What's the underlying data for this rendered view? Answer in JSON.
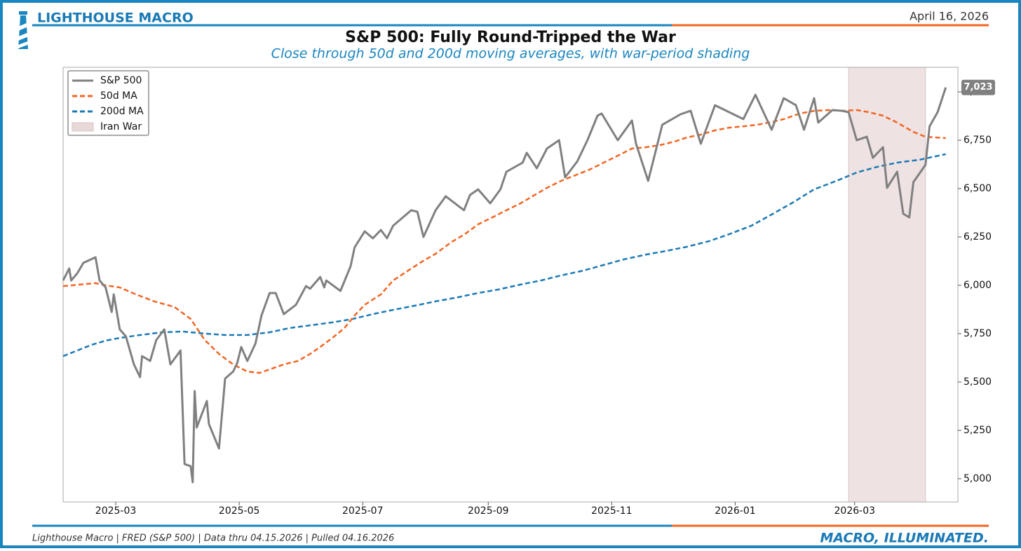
{
  "header": {
    "brand": "LIGHTHOUSE MACRO",
    "date": "April 16, 2026"
  },
  "footer": {
    "source": "Lighthouse Macro | FRED (S&P 500) | Data thru 04.15.2026 | Pulled 04.16.2026",
    "tagline": "MACRO, ILLUMINATED."
  },
  "chart_data": {
    "type": "line",
    "title": "S&P 500: Fully Round-Tripped the War",
    "subtitle": "Close through 50d and 200d moving averages, with war-period shading",
    "xlim": [
      "2025-02-03",
      "2026-04-21"
    ],
    "xticks": [
      {
        "value": "2025-03-01",
        "label": "2025-03"
      },
      {
        "value": "2025-05-01",
        "label": "2025-05"
      },
      {
        "value": "2025-07-01",
        "label": "2025-07"
      },
      {
        "value": "2025-09-01",
        "label": "2025-09"
      },
      {
        "value": "2025-11-01",
        "label": "2025-11"
      },
      {
        "value": "2026-01-01",
        "label": "2026-01"
      },
      {
        "value": "2026-03-01",
        "label": "2026-03"
      }
    ],
    "ylim": [
      4880,
      7127
    ],
    "yticks": [
      {
        "value": 5000,
        "label": "5,000"
      },
      {
        "value": 5250,
        "label": "5,250"
      },
      {
        "value": 5500,
        "label": "5,500"
      },
      {
        "value": 5750,
        "label": "5,750"
      },
      {
        "value": 6000,
        "label": "6,000"
      },
      {
        "value": 6250,
        "label": "6,250"
      },
      {
        "value": 6500,
        "label": "6,500"
      },
      {
        "value": 6750,
        "label": "6,750"
      },
      {
        "value": 7000,
        "label": "7,000"
      }
    ],
    "y_axis_side": "right",
    "legend": "upper left",
    "end_label": "7,023",
    "shaded_regions": [
      {
        "name": "Iran War",
        "start": "2026-02-26",
        "end": "2026-04-05",
        "color": "#e8d8d8"
      }
    ],
    "series": [
      {
        "name": "S&P 500",
        "color": "#808080",
        "dash": false,
        "x": [
          "2025-02-03",
          "2025-02-06",
          "2025-02-07",
          "2025-02-10",
          "2025-02-13",
          "2025-02-19",
          "2025-02-21",
          "2025-02-24",
          "2025-02-27",
          "2025-02-28",
          "2025-03-03",
          "2025-03-06",
          "2025-03-10",
          "2025-03-13",
          "2025-03-14",
          "2025-03-18",
          "2025-03-21",
          "2025-03-25",
          "2025-03-28",
          "2025-04-02",
          "2025-04-04",
          "2025-04-07",
          "2025-04-08",
          "2025-04-09",
          "2025-04-10",
          "2025-04-15",
          "2025-04-16",
          "2025-04-21",
          "2025-04-24",
          "2025-04-28",
          "2025-04-30",
          "2025-05-02",
          "2025-05-05",
          "2025-05-09",
          "2025-05-12",
          "2025-05-16",
          "2025-05-19",
          "2025-05-23",
          "2025-05-29",
          "2025-06-03",
          "2025-06-05",
          "2025-06-10",
          "2025-06-12",
          "2025-06-13",
          "2025-06-20",
          "2025-06-25",
          "2025-06-27",
          "2025-07-02",
          "2025-07-06",
          "2025-07-10",
          "2025-07-13",
          "2025-07-16",
          "2025-07-25",
          "2025-07-28",
          "2025-07-31",
          "2025-08-06",
          "2025-08-11",
          "2025-08-20",
          "2025-08-23",
          "2025-08-27",
          "2025-09-02",
          "2025-09-07",
          "2025-09-10",
          "2025-09-18",
          "2025-09-20",
          "2025-09-25",
          "2025-09-30",
          "2025-10-06",
          "2025-10-09",
          "2025-10-15",
          "2025-10-20",
          "2025-10-25",
          "2025-10-27",
          "2025-11-04",
          "2025-11-11",
          "2025-11-13",
          "2025-11-19",
          "2025-11-26",
          "2025-12-05",
          "2025-12-10",
          "2025-12-15",
          "2025-12-22",
          "2025-12-29",
          "2026-01-05",
          "2026-01-11",
          "2026-01-19",
          "2026-01-25",
          "2026-01-31",
          "2026-02-04",
          "2026-02-09",
          "2026-02-11",
          "2026-02-18",
          "2026-02-23",
          "2026-02-26",
          "2026-03-02",
          "2026-03-07",
          "2026-03-10",
          "2026-03-15",
          "2026-03-17",
          "2026-03-22",
          "2026-03-25",
          "2026-03-28",
          "2026-03-30",
          "2026-04-05",
          "2026-04-07",
          "2026-04-11",
          "2026-04-15"
        ],
        "values": [
          6025,
          6087,
          6025,
          6062,
          6116,
          6145,
          6025,
          5989,
          5862,
          5953,
          5772,
          5736,
          5591,
          5525,
          5634,
          5609,
          5717,
          5772,
          5591,
          5663,
          5076,
          5065,
          4982,
          5453,
          5265,
          5402,
          5283,
          5156,
          5518,
          5554,
          5598,
          5681,
          5609,
          5699,
          5844,
          5960,
          5960,
          5851,
          5899,
          5996,
          5982,
          6043,
          5989,
          6025,
          5971,
          6098,
          6196,
          6279,
          6243,
          6286,
          6243,
          6308,
          6388,
          6380,
          6250,
          6388,
          6460,
          6388,
          6467,
          6496,
          6424,
          6496,
          6587,
          6634,
          6685,
          6605,
          6707,
          6750,
          6558,
          6641,
          6750,
          6877,
          6888,
          6750,
          6852,
          6732,
          6540,
          6830,
          6884,
          6902,
          6732,
          6931,
          6895,
          6859,
          6985,
          6804,
          6967,
          6931,
          6804,
          6967,
          6841,
          6906,
          6902,
          6895,
          6750,
          6768,
          6659,
          6714,
          6504,
          6587,
          6370,
          6351,
          6533,
          6623,
          6822,
          6895,
          7023
        ]
      },
      {
        "name": "50d MA",
        "color": "#f26522",
        "dash": true,
        "x": [
          "2025-02-03",
          "2025-02-19",
          "2025-02-24",
          "2025-03-03",
          "2025-03-11",
          "2025-03-20",
          "2025-03-30",
          "2025-04-07",
          "2025-04-14",
          "2025-04-21",
          "2025-04-28",
          "2025-05-05",
          "2025-05-11",
          "2025-05-16",
          "2025-05-23",
          "2025-05-30",
          "2025-06-05",
          "2025-06-10",
          "2025-06-16",
          "2025-06-22",
          "2025-06-27",
          "2025-07-02",
          "2025-07-10",
          "2025-07-16",
          "2025-07-24",
          "2025-07-31",
          "2025-08-06",
          "2025-08-14",
          "2025-08-20",
          "2025-08-27",
          "2025-09-03",
          "2025-09-10",
          "2025-09-17",
          "2025-09-24",
          "2025-09-30",
          "2025-10-07",
          "2025-10-14",
          "2025-10-21",
          "2025-10-28",
          "2025-11-04",
          "2025-11-11",
          "2025-11-18",
          "2025-11-25",
          "2025-12-02",
          "2025-12-08",
          "2025-12-15",
          "2025-12-22",
          "2025-12-29",
          "2026-01-05",
          "2026-01-12",
          "2026-01-19",
          "2026-01-25",
          "2026-02-02",
          "2026-02-09",
          "2026-02-16",
          "2026-02-23",
          "2026-03-02",
          "2026-03-08",
          "2026-03-15",
          "2026-03-22",
          "2026-03-30",
          "2026-04-05",
          "2026-04-15"
        ],
        "values": [
          5996,
          6011,
          6000,
          5989,
          5953,
          5917,
          5888,
          5826,
          5717,
          5645,
          5591,
          5554,
          5547,
          5565,
          5591,
          5609,
          5645,
          5681,
          5728,
          5779,
          5844,
          5899,
          5953,
          6025,
          6080,
          6127,
          6163,
          6225,
          6261,
          6315,
          6351,
          6388,
          6424,
          6467,
          6504,
          6540,
          6569,
          6598,
          6634,
          6670,
          6707,
          6714,
          6725,
          6743,
          6764,
          6779,
          6801,
          6815,
          6822,
          6830,
          6844,
          6859,
          6888,
          6902,
          6906,
          6902,
          6906,
          6895,
          6877,
          6841,
          6793,
          6768,
          6761
        ]
      },
      {
        "name": "200d MA",
        "color": "#1a7ab5",
        "dash": true,
        "x": [
          "2025-02-03",
          "2025-02-10",
          "2025-02-17",
          "2025-02-24",
          "2025-03-03",
          "2025-03-13",
          "2025-03-24",
          "2025-04-03",
          "2025-04-14",
          "2025-04-24",
          "2025-05-05",
          "2025-05-16",
          "2025-05-26",
          "2025-06-05",
          "2025-06-16",
          "2025-06-26",
          "2025-07-06",
          "2025-07-16",
          "2025-07-27",
          "2025-08-06",
          "2025-08-17",
          "2025-08-27",
          "2025-09-06",
          "2025-09-17",
          "2025-09-27",
          "2025-10-07",
          "2025-10-18",
          "2025-10-28",
          "2025-11-07",
          "2025-11-18",
          "2025-11-28",
          "2025-12-08",
          "2025-12-19",
          "2025-12-29",
          "2026-01-09",
          "2026-01-19",
          "2026-01-30",
          "2026-02-09",
          "2026-02-20",
          "2026-03-02",
          "2026-03-12",
          "2026-03-22",
          "2026-04-02",
          "2026-04-15"
        ],
        "values": [
          5634,
          5663,
          5692,
          5714,
          5728,
          5743,
          5757,
          5761,
          5750,
          5743,
          5743,
          5757,
          5779,
          5793,
          5808,
          5826,
          5851,
          5873,
          5895,
          5917,
          5938,
          5960,
          5978,
          6004,
          6025,
          6051,
          6076,
          6105,
          6134,
          6159,
          6178,
          6199,
          6228,
          6264,
          6308,
          6366,
          6431,
          6496,
          6540,
          6583,
          6612,
          6634,
          6649,
          6678
        ]
      }
    ]
  }
}
